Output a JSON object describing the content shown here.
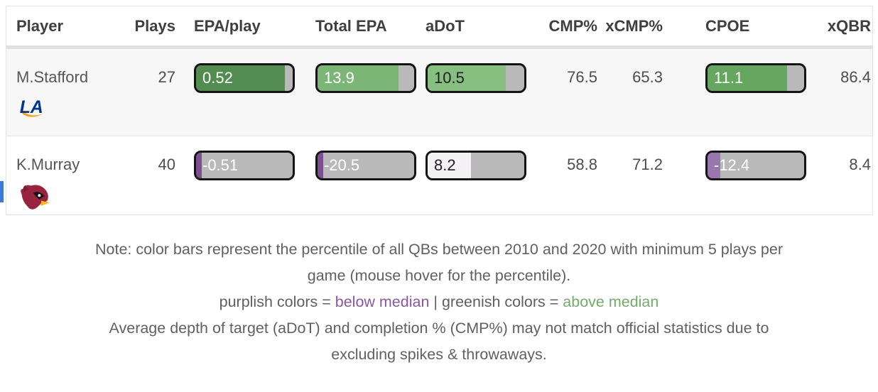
{
  "table": {
    "columns": [
      {
        "label": "Player"
      },
      {
        "label": "Plays"
      },
      {
        "label": "EPA/play"
      },
      {
        "label": "Total EPA"
      },
      {
        "label": "aDoT"
      },
      {
        "label": "CMP%"
      },
      {
        "label": "xCMP%"
      },
      {
        "label": "CPOE"
      },
      {
        "label": "xQBR"
      }
    ],
    "bar_track_color": "#b9b9b9",
    "bar_border_color": "#141414",
    "rows": [
      {
        "player": "M.Stafford",
        "team": "los-angeles-rams",
        "plays": "27",
        "epa_play": {
          "value": "0.52",
          "fill_pct": 92,
          "fill_color": "#538c50",
          "text_color": "#ffffff"
        },
        "total_epa": {
          "value": "13.9",
          "fill_pct": 84,
          "fill_color": "#7cb677",
          "text_color": "#ffffff"
        },
        "adot": {
          "value": "10.5",
          "fill_pct": 81,
          "fill_color": "#87bf81",
          "text_color": "#1f1f1f"
        },
        "cmp_pct": "76.5",
        "xcmp_pct": "65.3",
        "cpoe": {
          "value": "11.1",
          "fill_pct": 82,
          "fill_color": "#65a75f",
          "text_color": "#ffffff"
        },
        "xqbr": "86.4"
      },
      {
        "player": "K.Murray",
        "team": "arizona-cardinals",
        "plays": "40",
        "epa_play": {
          "value": "-0.51",
          "fill_pct": 6,
          "fill_color": "#7c4f93",
          "text_color": "#ffffff"
        },
        "total_epa": {
          "value": "-20.5",
          "fill_pct": 6,
          "fill_color": "#7c4f93",
          "text_color": "#ffffff"
        },
        "adot": {
          "value": "8.2",
          "fill_pct": 45,
          "fill_color": "#f4f1f5",
          "text_color": "#1f1f1f"
        },
        "cmp_pct": "58.8",
        "xcmp_pct": "71.2",
        "cpoe": {
          "value": "-12.4",
          "fill_pct": 13,
          "fill_color": "#9877ad",
          "text_color": "#ffffff"
        },
        "xqbr": "8.4"
      }
    ]
  },
  "notes": {
    "line1": "Note: color bars represent the percentile of all QBs between 2010 and 2020 with minimum 5 plays per",
    "line2": "game (mouse hover for the percentile).",
    "legend_prefix": "purplish colors = ",
    "legend_purple": "below median",
    "legend_separator": " | ",
    "legend_middle": "greenish colors = ",
    "legend_green": "above median",
    "line4": "Average depth of target (aDoT) and completion % (CMP%) may not match official statistics due to",
    "line5": "excluding spikes & throwaways.",
    "purple_color": "#8a57a5",
    "green_color": "#6fae69"
  }
}
